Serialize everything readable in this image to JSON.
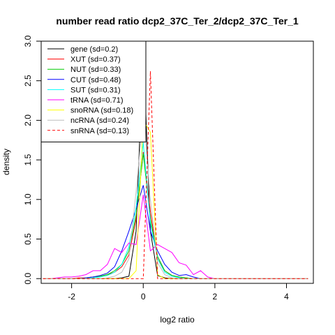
{
  "chart_data": {
    "type": "line",
    "title": "number read ratio dcp2_37C_Ter_2/dcp2_37C_Ter_1",
    "xlabel": "log2 ratio",
    "ylabel": "density",
    "xlim": [
      -2.85,
      4.75
    ],
    "ylim": [
      -0.06,
      3.0
    ],
    "xticks": [
      -2,
      0,
      2,
      4
    ],
    "yticks": [
      0.0,
      0.5,
      1.0,
      1.5,
      2.0,
      2.5,
      3.0
    ],
    "xtick_labels": [
      "-2",
      "0",
      "2",
      "4"
    ],
    "ytick_labels": [
      "0.0",
      "0.5",
      "1.0",
      "1.5",
      "2.0",
      "2.5",
      "3.0"
    ],
    "legend_position": "top-left",
    "x": [
      -2.8,
      -2.6,
      -2.4,
      -2.2,
      -2.0,
      -1.8,
      -1.6,
      -1.4,
      -1.2,
      -1.0,
      -0.8,
      -0.6,
      -0.4,
      -0.2,
      0.0,
      0.2,
      0.4,
      0.6,
      0.8,
      1.0,
      1.2,
      1.4,
      1.6,
      1.8,
      2.0,
      2.2,
      2.4,
      2.6,
      2.8,
      3.0,
      3.2,
      3.4,
      3.6,
      3.8,
      4.0,
      4.2,
      4.4,
      4.6
    ],
    "series": [
      {
        "name": "gene (sd=0.2)",
        "color": "#000000",
        "dash": false,
        "values": [
          0,
          0,
          0,
          0,
          0,
          0,
          0,
          0,
          0,
          0,
          0,
          0.01,
          0.03,
          0.6,
          2.92,
          0.6,
          0.04,
          0.01,
          0,
          0,
          0,
          0,
          0,
          0,
          0,
          0,
          0,
          0,
          0,
          0,
          0,
          0,
          0,
          0,
          0,
          0,
          0,
          0
        ]
      },
      {
        "name": "XUT (sd=0.37)",
        "color": "#ff0000",
        "dash": false,
        "values": [
          0,
          0,
          0,
          0,
          0,
          0.01,
          0.01,
          0.02,
          0.03,
          0.05,
          0.08,
          0.15,
          0.3,
          0.75,
          1.6,
          0.85,
          0.25,
          0.1,
          0.04,
          0.02,
          0.01,
          0,
          0,
          0,
          0,
          0,
          0,
          0,
          0,
          0,
          0,
          0,
          0,
          0,
          0,
          0,
          0,
          0
        ]
      },
      {
        "name": "NUT (sd=0.33)",
        "color": "#00cc00",
        "dash": false,
        "values": [
          0,
          0,
          0,
          0,
          0,
          0,
          0.01,
          0.02,
          0.03,
          0.05,
          0.1,
          0.18,
          0.35,
          0.8,
          1.58,
          0.75,
          0.28,
          0.1,
          0.04,
          0.02,
          0.01,
          0,
          0,
          0,
          0,
          0,
          0,
          0,
          0,
          0,
          0,
          0,
          0,
          0,
          0,
          0,
          0,
          0
        ]
      },
      {
        "name": "CUT (sd=0.48)",
        "color": "#0000ff",
        "dash": false,
        "values": [
          0,
          0,
          0,
          0,
          0,
          0,
          0.01,
          0.02,
          0.04,
          0.07,
          0.15,
          0.35,
          0.6,
          0.88,
          1.18,
          0.6,
          0.35,
          0.18,
          0.08,
          0.04,
          0.05,
          0.02,
          0,
          0,
          0,
          0,
          0,
          0,
          0,
          0,
          0,
          0,
          0,
          0,
          0,
          0,
          0,
          0
        ]
      },
      {
        "name": "SUT (sd=0.31)",
        "color": "#00ffff",
        "dash": false,
        "values": [
          0,
          0,
          0,
          0,
          0,
          0,
          0,
          0.01,
          0.02,
          0.04,
          0.08,
          0.18,
          0.4,
          0.9,
          1.72,
          0.7,
          0.25,
          0.08,
          0.03,
          0.01,
          0,
          0,
          0,
          0,
          0,
          0,
          0,
          0,
          0,
          0,
          0,
          0,
          0,
          0,
          0,
          0,
          0,
          0
        ]
      },
      {
        "name": "tRNA (sd=0.71)",
        "color": "#ff00ff",
        "dash": false,
        "values": [
          0,
          0,
          0.01,
          0.02,
          0.02,
          0.03,
          0.05,
          0.1,
          0.1,
          0.18,
          0.38,
          0.33,
          0.45,
          0.43,
          1.06,
          0.35,
          0.43,
          0.38,
          0.33,
          0.2,
          0.17,
          0.05,
          0.1,
          0.02,
          0,
          0,
          0,
          0,
          0,
          0,
          0,
          0,
          0,
          0,
          0,
          0,
          0,
          0
        ]
      },
      {
        "name": "snoRNA (sd=0.18)",
        "color": "#ffff00",
        "dash": false,
        "values": [
          0,
          0,
          0,
          0,
          0,
          0,
          0,
          0,
          0,
          0,
          0,
          0,
          0,
          0.1,
          2.0,
          1.85,
          0.05,
          0,
          0,
          0,
          0,
          0,
          0,
          0,
          0,
          0,
          0,
          0,
          0,
          0,
          0,
          0,
          0,
          0,
          0,
          0,
          0,
          0
        ]
      },
      {
        "name": "ncRNA (sd=0.24)",
        "color": "#bebebe",
        "dash": false,
        "values": [
          0,
          0,
          0,
          0,
          0,
          0,
          0,
          0,
          0,
          0.01,
          0.03,
          0.08,
          0.25,
          1.1,
          2.08,
          1.0,
          0.2,
          0.05,
          0.01,
          0,
          0,
          0,
          0,
          0,
          0,
          0,
          0,
          0,
          0,
          0,
          0,
          0,
          0,
          0,
          0,
          0,
          0,
          0
        ]
      },
      {
        "name": "snRNA (sd=0.13)",
        "color": "#ff0000",
        "dash": true,
        "values": [
          0,
          0,
          0,
          0,
          0,
          0,
          0,
          0,
          0,
          0,
          0,
          0,
          0,
          0,
          0,
          2.62,
          0,
          0,
          0,
          0,
          0,
          0,
          0,
          0,
          0,
          0,
          0,
          0,
          0,
          0,
          0,
          0,
          0,
          0,
          0,
          0,
          0,
          0
        ]
      }
    ]
  }
}
